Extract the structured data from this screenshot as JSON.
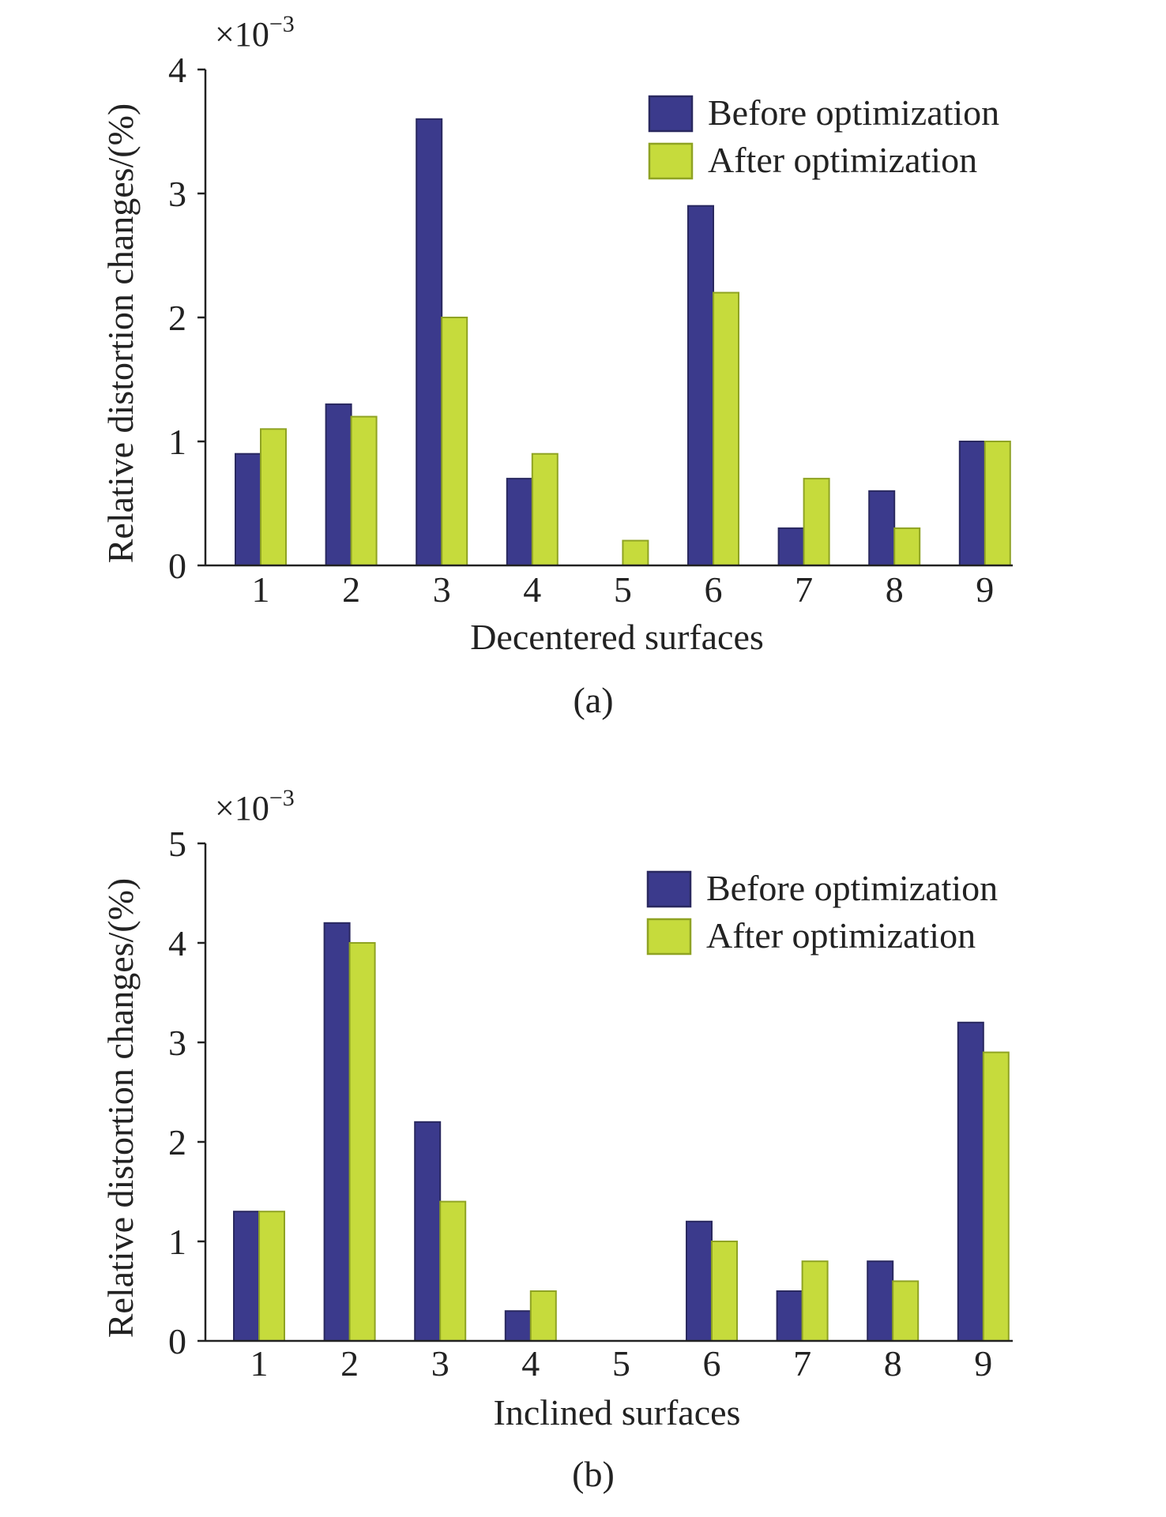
{
  "colors": {
    "before_fill": "#3b3a8c",
    "before_shade": "#2a2960",
    "after_fill": "#c6db3c",
    "after_shade": "#8fa323",
    "axis": "#222222",
    "text": "#222222"
  },
  "chart_data": [
    {
      "type": "bar",
      "panel_label": "(a)",
      "xlabel": "Decentered surfaces",
      "ylabel": "Relative distortion changes/(%)",
      "multiplier": "×10",
      "multiplier_exp": "−3",
      "ylim": [
        0,
        4
      ],
      "yticks": [
        "0",
        "1",
        "2",
        "3",
        "4"
      ],
      "categories": [
        "1",
        "2",
        "3",
        "4",
        "5",
        "6",
        "7",
        "8",
        "9"
      ],
      "legend_position": "top-right",
      "series": [
        {
          "name": "Before optimization",
          "values": [
            0.9,
            1.3,
            3.6,
            0.7,
            0.0,
            2.9,
            0.3,
            0.6,
            1.0
          ]
        },
        {
          "name": "After optimization",
          "values": [
            1.1,
            1.2,
            2.0,
            0.9,
            0.2,
            2.2,
            0.7,
            0.3,
            1.0
          ]
        }
      ]
    },
    {
      "type": "bar",
      "panel_label": "(b)",
      "xlabel": "Inclined surfaces",
      "ylabel": "Relative distortion changes/(%)",
      "multiplier": "×10",
      "multiplier_exp": "−3",
      "ylim": [
        0,
        5
      ],
      "yticks": [
        "0",
        "1",
        "2",
        "3",
        "4",
        "5"
      ],
      "categories": [
        "1",
        "2",
        "3",
        "4",
        "5",
        "6",
        "7",
        "8",
        "9"
      ],
      "legend_position": "top-right",
      "series": [
        {
          "name": "Before optimization",
          "values": [
            1.3,
            4.2,
            2.2,
            0.3,
            0.0,
            1.2,
            0.5,
            0.8,
            3.2
          ]
        },
        {
          "name": "After optimization",
          "values": [
            1.3,
            4.0,
            1.4,
            0.5,
            0.0,
            1.0,
            0.8,
            0.6,
            2.9
          ]
        }
      ]
    }
  ]
}
